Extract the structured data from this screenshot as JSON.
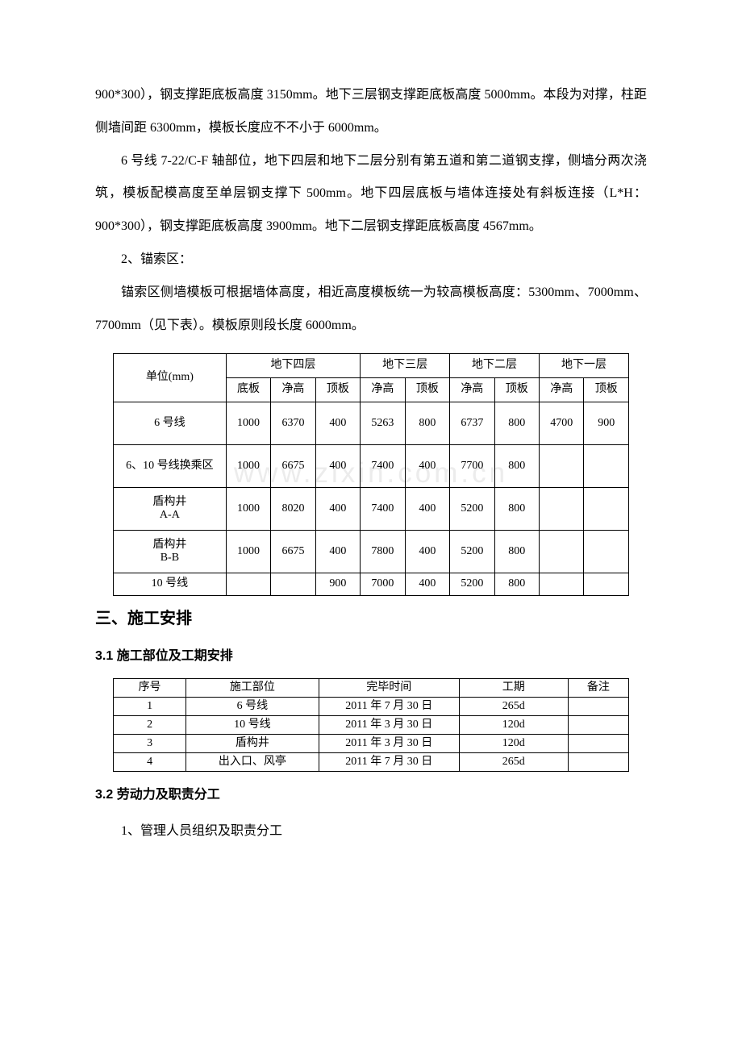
{
  "watermark": "www.zixin.com.cn",
  "paragraphs": {
    "p1": "900*300），钢支撑距底板高度 3150mm。地下三层钢支撑距底板高度 5000mm。本段为对撑，柱距侧墙间距 6300mm，模板长度应不不小于 6000mm。",
    "p2": "6 号线 7-22/C-F 轴部位，地下四层和地下二层分别有第五道和第二道钢支撑，侧墙分两次浇筑，模板配模高度至单层钢支撑下 500mm。地下四层底板与墙体连接处有斜板连接（L*H：900*300），钢支撑距底板高度 3900mm。地下二层钢支撑距底板高度 4567mm。",
    "p3_label": "2、锚索区：",
    "p4": "锚索区侧墙模板可根据墙体高度，相近高度模板统一为较高模板高度：5300mm、7000mm、7700mm（见下表）。模板原则段长度 6000mm。"
  },
  "layers_table": {
    "unit_label": "单位(mm)",
    "groups": [
      "地下四层",
      "地下三层",
      "地下二层",
      "地下一层"
    ],
    "sub_b4": [
      "底板",
      "净高",
      "顶板"
    ],
    "sub_other": [
      "净高",
      "顶板"
    ],
    "rows": [
      {
        "name": "6 号线",
        "cells": [
          "1000",
          "6370",
          "400",
          "5263",
          "800",
          "6737",
          "800",
          "4700",
          "900"
        ]
      },
      {
        "name": "6、10 号线换乘区",
        "cells": [
          "1000",
          "6675",
          "400",
          "7400",
          "400",
          "7700",
          "800",
          "",
          ""
        ]
      },
      {
        "name": "盾构井\nA-A",
        "cells": [
          "1000",
          "8020",
          "400",
          "7400",
          "400",
          "5200",
          "800",
          "",
          ""
        ]
      },
      {
        "name": "盾构井\nB-B",
        "cells": [
          "1000",
          "6675",
          "400",
          "7800",
          "400",
          "5200",
          "800",
          "",
          ""
        ]
      },
      {
        "name": "10 号线",
        "cells": [
          "",
          "",
          "900",
          "7000",
          "400",
          "5200",
          "800",
          "",
          ""
        ]
      }
    ]
  },
  "headings": {
    "h3": "三、施工安排",
    "h4a": "3.1 施工部位及工期安排",
    "h4b": "3.2 劳动力及职责分工"
  },
  "schedule_table": {
    "headers": [
      "序号",
      "施工部位",
      "完毕时间",
      "工期",
      "备注"
    ],
    "rows": [
      [
        "1",
        "6 号线",
        "2011 年 7 月 30 日",
        "265d",
        ""
      ],
      [
        "2",
        "10 号线",
        "2011 年 3 月 30 日",
        "120d",
        ""
      ],
      [
        "3",
        "盾构井",
        "2011 年 3 月 30 日",
        "120d",
        ""
      ],
      [
        "4",
        "出入口、风亭",
        "2011 年 7 月 30 日",
        "265d",
        ""
      ]
    ]
  },
  "footer_para": "1、管理人员组织及职责分工"
}
